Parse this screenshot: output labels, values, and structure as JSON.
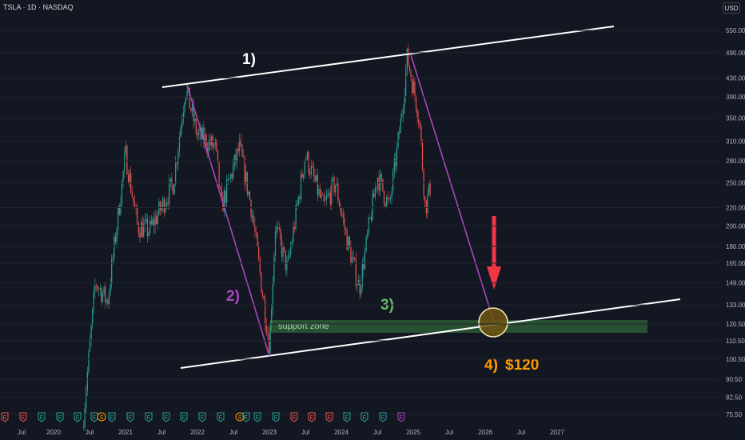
{
  "header": {
    "symbol": "TSLA",
    "interval": "1D",
    "exchange": "NASDAQ",
    "currency": "USD"
  },
  "colors": {
    "background": "#131722",
    "candle_up": "#26a69a",
    "candle_down": "#ef5350",
    "channel_line": "#ffffff",
    "impulse_line": "#ab47bc",
    "support_zone": "#4caf50",
    "arrow": "#f23645",
    "target_label": "#ff9800",
    "wave3_label": "#66bb6a",
    "wave2_label": "#ab47bc"
  },
  "chart_data": {
    "type": "candlestick",
    "price_scale": "log",
    "y_ticks": [
      "550.00",
      "490.00",
      "430.00",
      "390.00",
      "350.00",
      "310.00",
      "280.00",
      "250.00",
      "220.00",
      "200.00",
      "180.00",
      "165.00",
      "149.00",
      "133.00",
      "120.50",
      "110.50",
      "100.50",
      "90.50",
      "82.50",
      "75.50"
    ],
    "x_ticks": [
      "Jul",
      "2020",
      "Jul",
      "2021",
      "Jul",
      "2022",
      "Jul",
      "2023",
      "Jul",
      "2024",
      "Jul",
      "2025",
      "Jul",
      "2026",
      "Jul",
      "2027"
    ],
    "earnings_markers": [
      "E",
      "E",
      "E",
      "E",
      "E",
      "E",
      "S",
      "E",
      "E",
      "E",
      "E",
      "E",
      "E",
      "E",
      "S",
      "E",
      "E",
      "E",
      "E",
      "E",
      "E",
      "E",
      "E",
      "E",
      "E"
    ],
    "annotations": {
      "wave1": "1)",
      "wave2": "2)",
      "wave3": "3)",
      "wave4": "4)",
      "target": "$120",
      "support_zone": "support zone"
    },
    "price_path": [
      {
        "t": "2020-06",
        "p": 75
      },
      {
        "t": "2020-08",
        "p": 150
      },
      {
        "t": "2020-10",
        "p": 135
      },
      {
        "t": "2021-01",
        "p": 290
      },
      {
        "t": "2021-03",
        "p": 200
      },
      {
        "t": "2021-05",
        "p": 195
      },
      {
        "t": "2021-09",
        "p": 250
      },
      {
        "t": "2021-11",
        "p": 410
      },
      {
        "t": "2022-01",
        "p": 320
      },
      {
        "t": "2022-04",
        "p": 300
      },
      {
        "t": "2022-05",
        "p": 220
      },
      {
        "t": "2022-08",
        "p": 300
      },
      {
        "t": "2022-10",
        "p": 220
      },
      {
        "t": "2023-01",
        "p": 108
      },
      {
        "t": "2023-02",
        "p": 200
      },
      {
        "t": "2023-04",
        "p": 160
      },
      {
        "t": "2023-07",
        "p": 290
      },
      {
        "t": "2023-10",
        "p": 220
      },
      {
        "t": "2023-12",
        "p": 250
      },
      {
        "t": "2024-02",
        "p": 185
      },
      {
        "t": "2024-04",
        "p": 145
      },
      {
        "t": "2024-07",
        "p": 260
      },
      {
        "t": "2024-09",
        "p": 220
      },
      {
        "t": "2024-11",
        "p": 350
      },
      {
        "t": "2024-12",
        "p": 480
      },
      {
        "t": "2025-02",
        "p": 350
      },
      {
        "t": "2025-03",
        "p": 220
      },
      {
        "t": "2025-04",
        "p": 250
      }
    ]
  }
}
